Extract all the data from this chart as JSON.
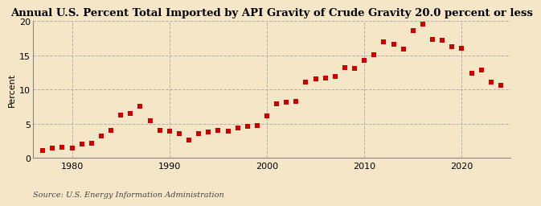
{
  "title": "Annual U.S. Percent Total Imported by API Gravity of Crude Gravity 20.0 percent or less",
  "ylabel": "Percent",
  "source": "Source: U.S. Energy Information Administration",
  "background_color": "#f5e6c8",
  "marker_color": "#cc0000",
  "grid_color": "#aaaaaa",
  "xlim": [
    1976,
    2025
  ],
  "ylim": [
    0,
    20
  ],
  "yticks": [
    0,
    5,
    10,
    15,
    20
  ],
  "xticks": [
    1980,
    1990,
    2000,
    2010,
    2020
  ],
  "years": [
    1977,
    1978,
    1979,
    1980,
    1981,
    1982,
    1983,
    1984,
    1985,
    1986,
    1987,
    1988,
    1989,
    1990,
    1991,
    1992,
    1993,
    1994,
    1995,
    1996,
    1997,
    1998,
    1999,
    2000,
    2001,
    2002,
    2003,
    2004,
    2005,
    2006,
    2007,
    2008,
    2009,
    2010,
    2011,
    2012,
    2013,
    2014,
    2015,
    2016,
    2017,
    2018,
    2019,
    2020,
    2021,
    2022,
    2023,
    2024
  ],
  "values": [
    1.1,
    1.5,
    1.6,
    1.5,
    2.0,
    2.2,
    3.2,
    4.1,
    6.3,
    6.5,
    7.6,
    5.4,
    4.1,
    3.9,
    3.6,
    2.6,
    3.6,
    3.8,
    4.0,
    3.9,
    4.4,
    4.6,
    4.8,
    6.1,
    7.9,
    8.2,
    8.3,
    11.1,
    11.5,
    11.7,
    11.9,
    13.2,
    13.1,
    14.2,
    15.1,
    17.0,
    16.6,
    15.9,
    18.6,
    19.5,
    17.3,
    17.2,
    16.2,
    16.0,
    12.4,
    12.8,
    11.1,
    10.6
  ],
  "title_fontsize": 9.5,
  "label_fontsize": 8,
  "tick_fontsize": 8,
  "source_fontsize": 7,
  "marker_size": 14
}
